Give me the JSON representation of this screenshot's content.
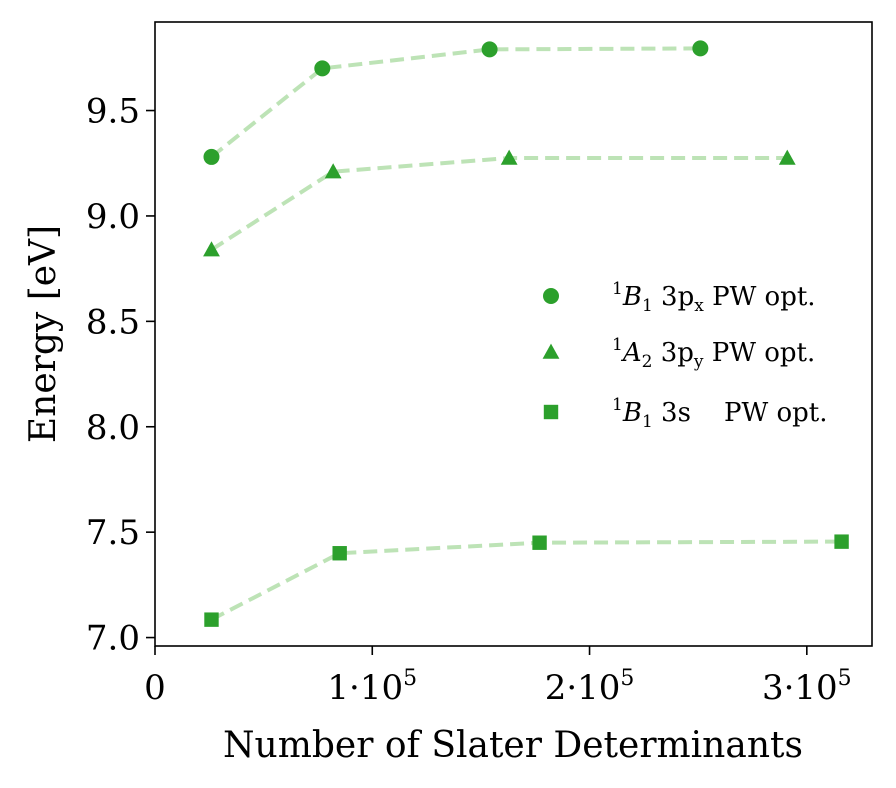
{
  "chart_data": {
    "type": "scatter",
    "title": "",
    "xlabel": "Number of Slater Determinants",
    "ylabel": "Energy [eV]",
    "xlim": [
      0,
      330000
    ],
    "ylim": [
      6.96,
      9.92
    ],
    "x_ticks": [
      {
        "value": 0,
        "label": "0",
        "exp": ""
      },
      {
        "value": 100000,
        "label": "1·10",
        "exp": "5"
      },
      {
        "value": 200000,
        "label": "2·10",
        "exp": "5"
      },
      {
        "value": 300000,
        "label": "3·10",
        "exp": "5"
      }
    ],
    "y_ticks": [
      {
        "value": 7.0,
        "label": "7.0"
      },
      {
        "value": 7.5,
        "label": "7.5"
      },
      {
        "value": 8.0,
        "label": "8.0"
      },
      {
        "value": 8.5,
        "label": "8.5"
      },
      {
        "value": 9.0,
        "label": "9.0"
      },
      {
        "value": 9.5,
        "label": "9.5"
      }
    ],
    "legend_position": "center-right",
    "color": "#2ca02c",
    "line_color": "#bde3b6",
    "series": [
      {
        "name": "1B1 3px PW opt.",
        "marker": "circle",
        "legend": {
          "sup": "1",
          "state": "B",
          "sub": "1",
          "orb": "3p",
          "orbsub": "x",
          "pad": "",
          "suffix": "PW opt."
        },
        "points": [
          {
            "x": 26000,
            "y": 9.28
          },
          {
            "x": 77000,
            "y": 9.7
          },
          {
            "x": 154000,
            "y": 9.79
          },
          {
            "x": 251000,
            "y": 9.795
          }
        ]
      },
      {
        "name": "1A2 3py PW opt.",
        "marker": "triangle",
        "legend": {
          "sup": "1",
          "state": "A",
          "sub": "2",
          "orb": "3p",
          "orbsub": "y",
          "pad": "",
          "suffix": "PW opt."
        },
        "points": [
          {
            "x": 26000,
            "y": 8.84
          },
          {
            "x": 82000,
            "y": 9.21
          },
          {
            "x": 163000,
            "y": 9.275
          },
          {
            "x": 291000,
            "y": 9.275
          }
        ]
      },
      {
        "name": "1B1 3s PW opt.",
        "marker": "square",
        "legend": {
          "sup": "1",
          "state": "B",
          "sub": "1",
          "orb": "3s",
          "orbsub": "",
          "pad": "   ",
          "suffix": "PW opt."
        },
        "points": [
          {
            "x": 26000,
            "y": 7.085
          },
          {
            "x": 85000,
            "y": 7.4
          },
          {
            "x": 177000,
            "y": 7.45
          },
          {
            "x": 316000,
            "y": 7.455
          }
        ]
      }
    ]
  }
}
